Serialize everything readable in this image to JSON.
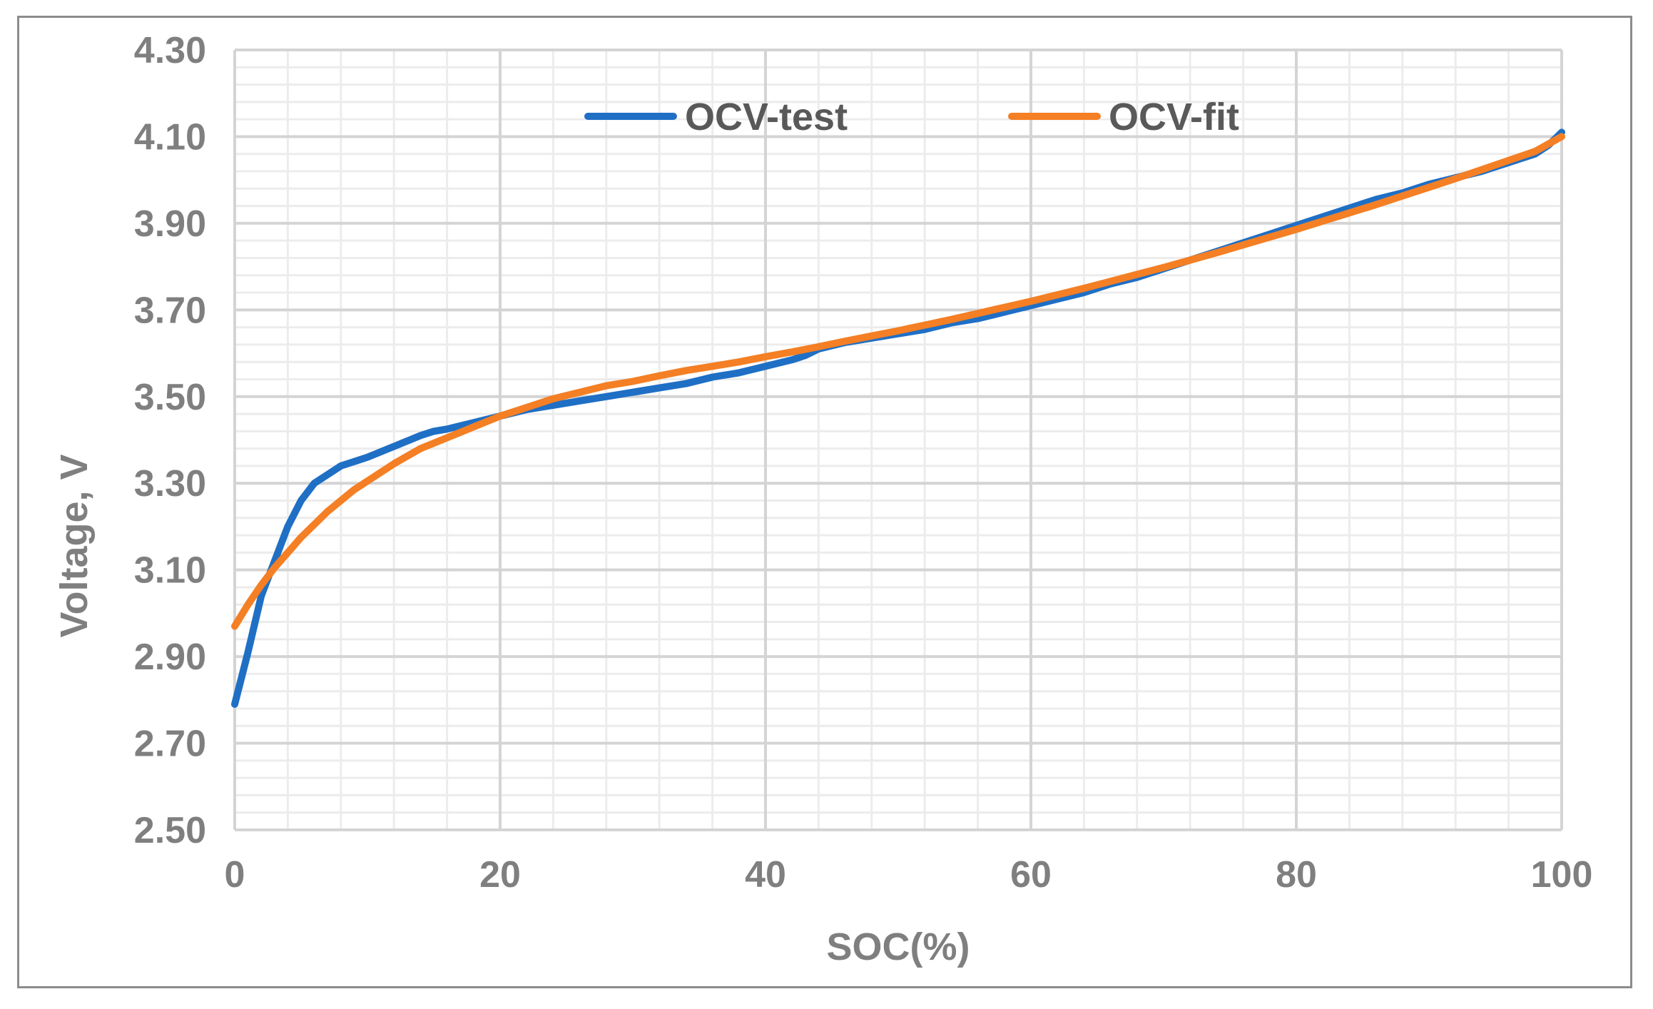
{
  "chart_data": {
    "type": "line",
    "title": "",
    "xlabel": "SOC(%)",
    "ylabel": "Voltage, V",
    "xlim": [
      0,
      100
    ],
    "ylim": [
      2.5,
      4.3
    ],
    "x_major_ticks": [
      "0",
      "20",
      "40",
      "60",
      "80",
      "100"
    ],
    "x_major_values": [
      0,
      20,
      40,
      60,
      80,
      100
    ],
    "x_minor_step": 4,
    "y_major_ticks": [
      "2.50",
      "2.70",
      "2.90",
      "3.10",
      "3.30",
      "3.50",
      "3.70",
      "3.90",
      "4.10",
      "4.30"
    ],
    "y_major_values": [
      2.5,
      2.7,
      2.9,
      3.1,
      3.3,
      3.5,
      3.7,
      3.9,
      4.1,
      4.3
    ],
    "y_minor_step": 0.04,
    "grid": true,
    "legend_position": "top-center",
    "series": [
      {
        "name": "OCV-test",
        "color": "#1f6fc5",
        "x": [
          0,
          1,
          2,
          3,
          4,
          5,
          6,
          7,
          8,
          9,
          10,
          12,
          14,
          15,
          16,
          18,
          20,
          22,
          24,
          26,
          28,
          30,
          32,
          34,
          36,
          38,
          40,
          42,
          43,
          44,
          46,
          48,
          50,
          52,
          54,
          56,
          58,
          60,
          62,
          64,
          66,
          68,
          70,
          72,
          74,
          76,
          78,
          80,
          82,
          84,
          86,
          88,
          90,
          92,
          94,
          95,
          96,
          97,
          98,
          99,
          100
        ],
        "y": [
          2.79,
          2.91,
          3.04,
          3.12,
          3.2,
          3.26,
          3.3,
          3.32,
          3.34,
          3.35,
          3.36,
          3.385,
          3.41,
          3.42,
          3.425,
          3.44,
          3.455,
          3.47,
          3.48,
          3.49,
          3.5,
          3.51,
          3.52,
          3.53,
          3.545,
          3.555,
          3.57,
          3.585,
          3.595,
          3.61,
          3.625,
          3.635,
          3.645,
          3.655,
          3.67,
          3.68,
          3.695,
          3.71,
          3.725,
          3.74,
          3.76,
          3.775,
          3.795,
          3.815,
          3.835,
          3.855,
          3.875,
          3.895,
          3.915,
          3.935,
          3.955,
          3.97,
          3.99,
          4.005,
          4.02,
          4.03,
          4.04,
          4.05,
          4.06,
          4.08,
          4.11
        ]
      },
      {
        "name": "OCV-fit",
        "color": "#f47f24",
        "x": [
          0,
          1,
          2,
          3,
          4,
          5,
          6,
          7,
          8,
          9,
          10,
          12,
          14,
          16,
          18,
          20,
          22,
          24,
          26,
          28,
          30,
          32,
          34,
          36,
          38,
          40,
          42,
          44,
          46,
          48,
          50,
          52,
          54,
          56,
          58,
          60,
          62,
          64,
          66,
          68,
          70,
          72,
          74,
          76,
          78,
          80,
          82,
          84,
          86,
          88,
          90,
          92,
          94,
          96,
          98,
          100
        ],
        "y": [
          2.97,
          3.02,
          3.065,
          3.105,
          3.14,
          3.175,
          3.205,
          3.235,
          3.26,
          3.285,
          3.305,
          3.345,
          3.38,
          3.405,
          3.43,
          3.455,
          3.475,
          3.495,
          3.51,
          3.525,
          3.535,
          3.548,
          3.56,
          3.57,
          3.58,
          3.592,
          3.603,
          3.615,
          3.628,
          3.64,
          3.652,
          3.665,
          3.678,
          3.692,
          3.706,
          3.72,
          3.735,
          3.75,
          3.766,
          3.782,
          3.798,
          3.815,
          3.832,
          3.85,
          3.868,
          3.886,
          3.905,
          3.924,
          3.943,
          3.963,
          3.983,
          4.003,
          4.024,
          4.045,
          4.066,
          4.1
        ]
      }
    ]
  }
}
